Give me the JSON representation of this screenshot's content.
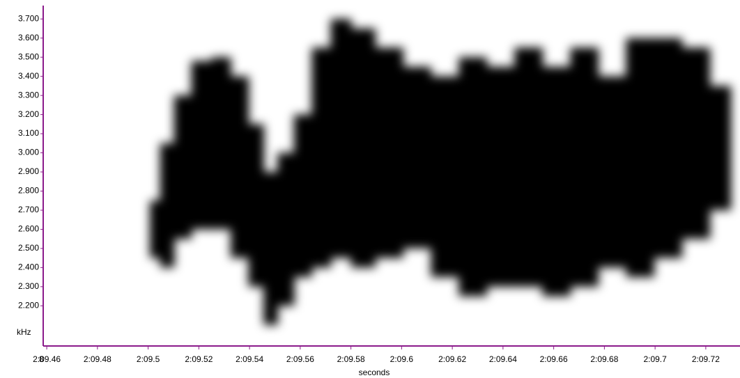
{
  "chart_data": {
    "type": "spectrogram",
    "y_label": "kHz",
    "x_label": "seconds",
    "x_prefix_label": "8",
    "color": "#000000",
    "axis_color": "#8b1a8b",
    "first_tick_color": "#1f3fcf",
    "xlim": [
      129.4586,
      129.7335
    ],
    "ylim": [
      1.99,
      3.77
    ],
    "xticks": [
      {
        "value": 129.46,
        "label": "2:09.46"
      },
      {
        "value": 129.48,
        "label": "2:09.48"
      },
      {
        "value": 129.5,
        "label": "2:09.5"
      },
      {
        "value": 129.52,
        "label": "2:09.52"
      },
      {
        "value": 129.54,
        "label": "2:09.54"
      },
      {
        "value": 129.56,
        "label": "2:09.56"
      },
      {
        "value": 129.58,
        "label": "2:09.58"
      },
      {
        "value": 129.6,
        "label": "2:09.6"
      },
      {
        "value": 129.62,
        "label": "2:09.62"
      },
      {
        "value": 129.64,
        "label": "2:09.64"
      },
      {
        "value": 129.66,
        "label": "2:09.66"
      },
      {
        "value": 129.68,
        "label": "2:09.68"
      },
      {
        "value": 129.7,
        "label": "2:09.7"
      },
      {
        "value": 129.72,
        "label": "2:09.72"
      }
    ],
    "yticks": [
      {
        "value": 2.2,
        "label": "2.200"
      },
      {
        "value": 2.3,
        "label": "2.300"
      },
      {
        "value": 2.4,
        "label": "2.400"
      },
      {
        "value": 2.5,
        "label": "2.500"
      },
      {
        "value": 2.6,
        "label": "2.600"
      },
      {
        "value": 2.7,
        "label": "2.700"
      },
      {
        "value": 2.8,
        "label": "2.800"
      },
      {
        "value": 2.9,
        "label": "2.900"
      },
      {
        "value": 3.0,
        "label": "3.000"
      },
      {
        "value": 3.1,
        "label": "3.100"
      },
      {
        "value": 3.2,
        "label": "3.200"
      },
      {
        "value": 3.3,
        "label": "3.300"
      },
      {
        "value": 3.4,
        "label": "3.400"
      },
      {
        "value": 3.5,
        "label": "3.500"
      },
      {
        "value": 3.6,
        "label": "3.600"
      },
      {
        "value": 3.7,
        "label": "3.700"
      }
    ],
    "x": [
      129.502,
      129.5074,
      129.513,
      129.521,
      129.529,
      129.536,
      129.543,
      129.548,
      129.554,
      129.561,
      129.568,
      129.576,
      129.584,
      129.595,
      129.606,
      129.617,
      129.628,
      129.639,
      129.65,
      129.661,
      129.672,
      129.683,
      129.694,
      129.705,
      129.716,
      129.727
    ],
    "lower": [
      2.45,
      2.4,
      2.55,
      2.6,
      2.6,
      2.45,
      2.3,
      2.1,
      2.2,
      2.35,
      2.4,
      2.45,
      2.4,
      2.45,
      2.5,
      2.35,
      2.25,
      2.3,
      2.3,
      2.25,
      2.3,
      2.4,
      2.35,
      2.45,
      2.55,
      2.7
    ],
    "upper": [
      2.75,
      3.05,
      3.3,
      3.48,
      3.5,
      3.4,
      3.15,
      2.9,
      3.0,
      3.2,
      3.55,
      3.7,
      3.65,
      3.55,
      3.45,
      3.4,
      3.5,
      3.45,
      3.55,
      3.45,
      3.55,
      3.4,
      3.6,
      3.6,
      3.55,
      3.35
    ]
  }
}
